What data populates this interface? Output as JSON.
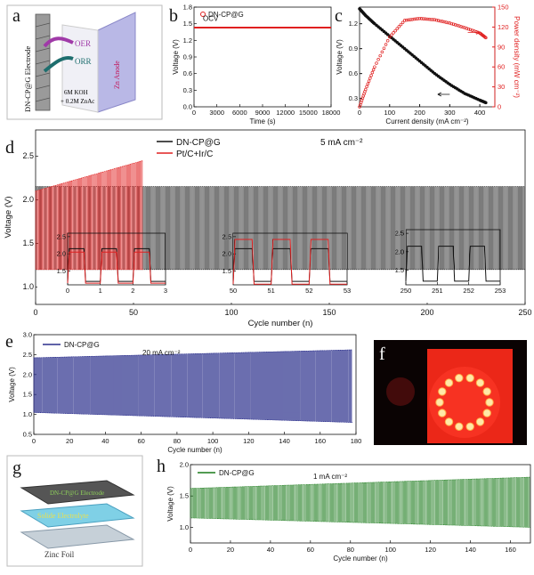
{
  "panels": {
    "a": {
      "letter": "a",
      "labels": {
        "electrode": "DN-CP@G Electrode",
        "oer": "OER",
        "orr": "ORR",
        "electrolyte1": "6M KOH",
        "electrolyte2": "+ 0.2M ZnAc",
        "anode": "Zn Anode"
      }
    },
    "b": {
      "letter": "b"
    },
    "c": {
      "letter": "c"
    },
    "d": {
      "letter": "d"
    },
    "e": {
      "letter": "e"
    },
    "f": {
      "letter": "f"
    },
    "g": {
      "letter": "g",
      "labels": {
        "electrode": "DN-CP@G Electrode",
        "electrolyte": "Solide Electrolyte",
        "foil": "Zinc Foil"
      }
    },
    "h": {
      "letter": "h"
    }
  },
  "colors": {
    "black_series": "#111111",
    "red_series": "#e02020",
    "blue_series": "#2b2f8c",
    "green_series": "#1a7a1a",
    "photo_glow": "#ff2a1a"
  },
  "chart_data": [
    {
      "id": "b",
      "type": "line",
      "title": "",
      "xlabel": "Time (s)",
      "ylabel": "Voltage (V)",
      "xlim": [
        0,
        18000
      ],
      "ylim": [
        0.0,
        1.8
      ],
      "xticks": [
        "0",
        "3000",
        "6000",
        "9000",
        "12000",
        "15000",
        "18000"
      ],
      "yticks": [
        "0.0",
        "0.3",
        "0.6",
        "0.9",
        "1.2",
        "1.5",
        "1.8"
      ],
      "annotation": "OCV",
      "series": [
        {
          "name": "DN-CP@G",
          "color": "#e02020",
          "x": [
            0,
            18000
          ],
          "y": [
            1.43,
            1.43
          ]
        }
      ]
    },
    {
      "id": "c",
      "type": "line",
      "xlabel": "Current density (mA cm⁻²)",
      "ylabel": "Voltage (V)",
      "ylabel_right": "Power density (mW cm⁻²)",
      "xlim": [
        0,
        450
      ],
      "ylim": [
        0.2,
        1.4
      ],
      "ylim_right": [
        0,
        150
      ],
      "xticks": [
        "0",
        "100",
        "200",
        "300",
        "400"
      ],
      "yticks": [
        "0.3",
        "0.6",
        "0.9",
        "1.2"
      ],
      "yticks_right": [
        "0",
        "30",
        "60",
        "90",
        "120",
        "150"
      ],
      "series": [
        {
          "name": "Voltage",
          "axis": "left",
          "color": "#111111",
          "x": [
            0,
            20,
            50,
            100,
            150,
            200,
            250,
            300,
            350,
            400,
            420
          ],
          "y": [
            1.38,
            1.3,
            1.2,
            1.05,
            0.9,
            0.75,
            0.6,
            0.47,
            0.36,
            0.28,
            0.25
          ]
        },
        {
          "name": "Power density",
          "axis": "right",
          "color": "#e02020",
          "x": [
            0,
            20,
            50,
            100,
            150,
            200,
            250,
            300,
            350,
            400,
            420
          ],
          "y": [
            0,
            26,
            60,
            105,
            130,
            133,
            131,
            126,
            119,
            111,
            104
          ]
        }
      ]
    },
    {
      "id": "d",
      "type": "line",
      "xlabel": "Cycle number (n)",
      "ylabel": "Voltage (V)",
      "annotation": "5 mA cm⁻²",
      "xlim": [
        0,
        250
      ],
      "ylim": [
        0.8,
        2.8
      ],
      "xticks": [
        "0",
        "50",
        "100",
        "150",
        "200",
        "250"
      ],
      "yticks": [
        "1.0",
        "1.5",
        "2.0",
        "2.5"
      ],
      "series": [
        {
          "name": "DN-CP@G",
          "color": "#111111",
          "cycles": [
            0,
            250
          ],
          "charge_v": 2.15,
          "discharge_v": 1.2
        },
        {
          "name": "Pt/C+Ir/C",
          "color": "#e02020",
          "cycles": [
            0,
            55
          ],
          "charge_v_start": 2.1,
          "charge_v_end": 2.45,
          "discharge_v": 1.2
        }
      ],
      "insets": [
        {
          "xlim": [
            0,
            3
          ],
          "ylim": [
            1.1,
            2.6
          ],
          "xticks": [
            "0",
            "1",
            "2",
            "3"
          ],
          "yticks": [
            "1.5",
            "2.0",
            "2.5"
          ]
        },
        {
          "xlim": [
            50,
            53
          ],
          "ylim": [
            1.1,
            2.6
          ],
          "xticks": [
            "50",
            "51",
            "52",
            "53"
          ],
          "yticks": [
            "1.5",
            "2.0",
            "2.5"
          ]
        },
        {
          "xlim": [
            250,
            253
          ],
          "ylim": [
            1.1,
            2.6
          ],
          "xticks": [
            "250",
            "251",
            "252",
            "253"
          ],
          "yticks": [
            "1.5",
            "2.0",
            "2.5"
          ]
        }
      ]
    },
    {
      "id": "e",
      "type": "line",
      "xlabel": "Cycle number (n)",
      "ylabel": "Voltage (V)",
      "annotation": "20 mA cm⁻²",
      "xlim": [
        0,
        180
      ],
      "ylim": [
        0.5,
        3.0
      ],
      "xticks": [
        "0",
        "20",
        "40",
        "60",
        "80",
        "100",
        "120",
        "140",
        "160",
        "180"
      ],
      "yticks": [
        "0.5",
        "1.0",
        "1.5",
        "2.0",
        "2.5",
        "3.0"
      ],
      "series": [
        {
          "name": "DN-CP@G",
          "color": "#2b2f8c",
          "cycles": [
            0,
            178
          ],
          "charge_v_start": 2.42,
          "charge_v_end": 2.62,
          "discharge_v_start": 1.05,
          "discharge_v_end": 0.8
        }
      ]
    },
    {
      "id": "h",
      "type": "line",
      "xlabel": "Cycle number (n)",
      "ylabel": "Voltage (V)",
      "annotation": "1 mA cm⁻²",
      "xlim": [
        0,
        170
      ],
      "ylim": [
        0.75,
        2.0
      ],
      "xticks": [
        "0",
        "20",
        "40",
        "60",
        "80",
        "100",
        "120",
        "140",
        "160"
      ],
      "yticks": [
        "1.0",
        "1.5",
        "2.0"
      ],
      "series": [
        {
          "name": "DN-CP@G",
          "color": "#1a7a1a",
          "cycles": [
            0,
            170
          ],
          "charge_v_start": 1.62,
          "charge_v_end": 1.8,
          "discharge_v_start": 1.15,
          "discharge_v_end": 1.0
        }
      ]
    }
  ]
}
